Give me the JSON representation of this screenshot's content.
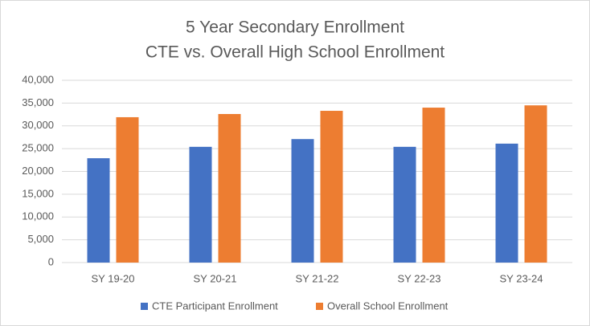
{
  "chart_data": {
    "type": "bar",
    "title": "5 Year Secondary Enrollment",
    "subtitle": "CTE vs. Overall High School Enrollment",
    "categories": [
      "SY 19-20",
      "SY 20-21",
      "SY 21-22",
      "SY 22-23",
      "SY 23-24"
    ],
    "series": [
      {
        "name": "CTE Participant Enrollment",
        "color": "#4472c4",
        "values": [
          22900,
          25400,
          27100,
          25400,
          26100
        ]
      },
      {
        "name": "Overall School Enrollment",
        "color": "#ed7d31",
        "values": [
          31900,
          32600,
          33300,
          34000,
          34500
        ]
      }
    ],
    "ylim": [
      0,
      40000
    ],
    "yticks": [
      0,
      {
        "value": 5000,
        "label": "5,000"
      },
      {
        "value": 10000,
        "label": "10,000"
      },
      {
        "value": 15000,
        "label": "15,000"
      },
      {
        "value": 20000,
        "label": "20,000"
      },
      {
        "value": 25000,
        "label": "25,000"
      },
      {
        "value": 30000,
        "label": "30,000"
      },
      {
        "value": 35000,
        "label": "35,000"
      },
      {
        "value": 40000,
        "label": "40,000"
      }
    ],
    "grid": true,
    "legend": "bottom"
  }
}
